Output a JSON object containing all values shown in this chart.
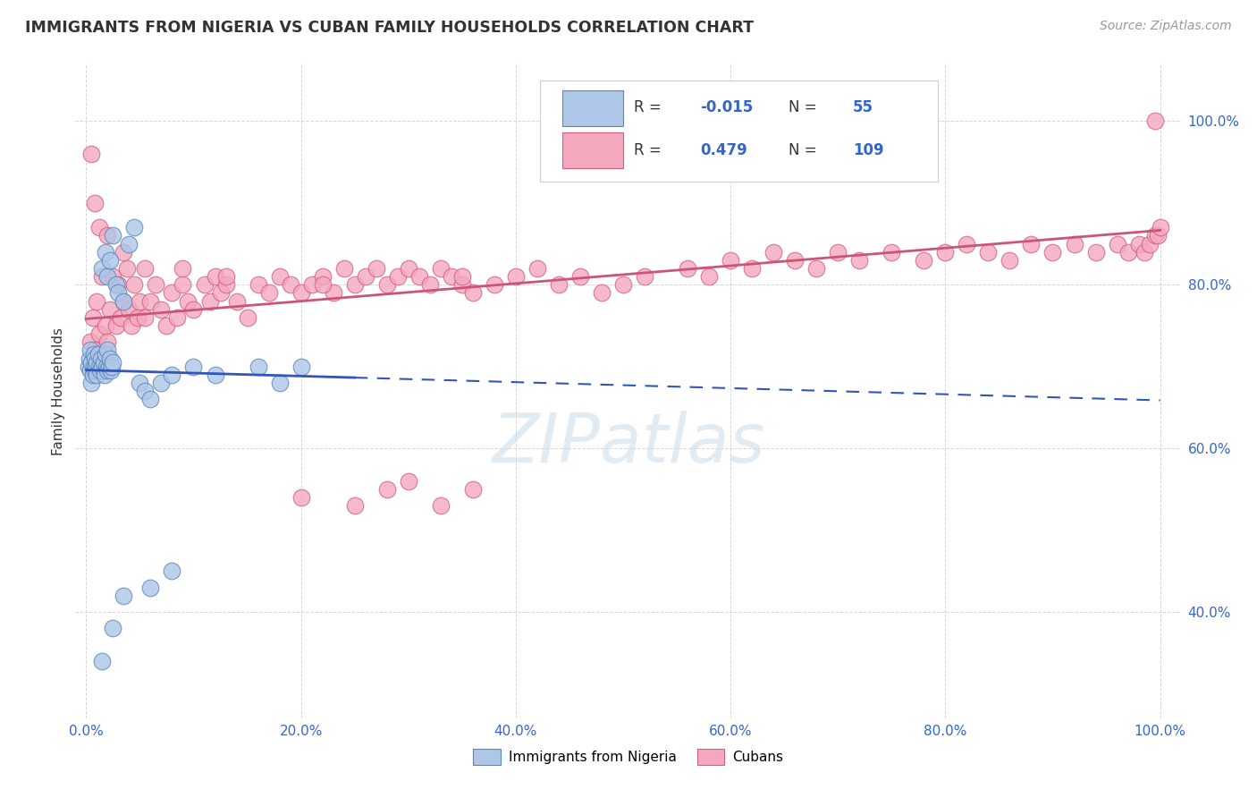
{
  "title": "IMMIGRANTS FROM NIGERIA VS CUBAN FAMILY HOUSEHOLDS CORRELATION CHART",
  "source": "Source: ZipAtlas.com",
  "ylabel": "Family Households",
  "nigeria_color": "#aec6e8",
  "nigeria_edge": "#5588bb",
  "cuba_color": "#f4a8be",
  "cuba_edge": "#d06080",
  "nigeria_R": -0.015,
  "nigeria_N": 55,
  "cuba_R": 0.479,
  "cuba_N": 109,
  "legend_color": "#3366cc",
  "title_color": "#333333",
  "source_color": "#999999",
  "axis_tick_color": "#3366cc",
  "grid_color": "#cccccc",
  "watermark": "ZIPatlas",
  "bg_color": "#ffffff",
  "nigeria_line_color": "#3355bb",
  "cuba_line_color": "#cc5577",
  "xlim": [
    -0.01,
    1.02
  ],
  "ylim": [
    0.27,
    1.07
  ],
  "yticks": [
    0.4,
    0.6,
    0.8,
    1.0
  ],
  "ytick_labels": [
    "40.0%",
    "60.0%",
    "80.0%",
    "100.0%"
  ],
  "xticks": [
    0.0,
    0.2,
    0.4,
    0.6,
    0.8,
    1.0
  ],
  "xtick_labels": [
    "0.0%",
    "20.0%",
    "40.0%",
    "60.0%",
    "80.0%",
    "100.0%"
  ]
}
